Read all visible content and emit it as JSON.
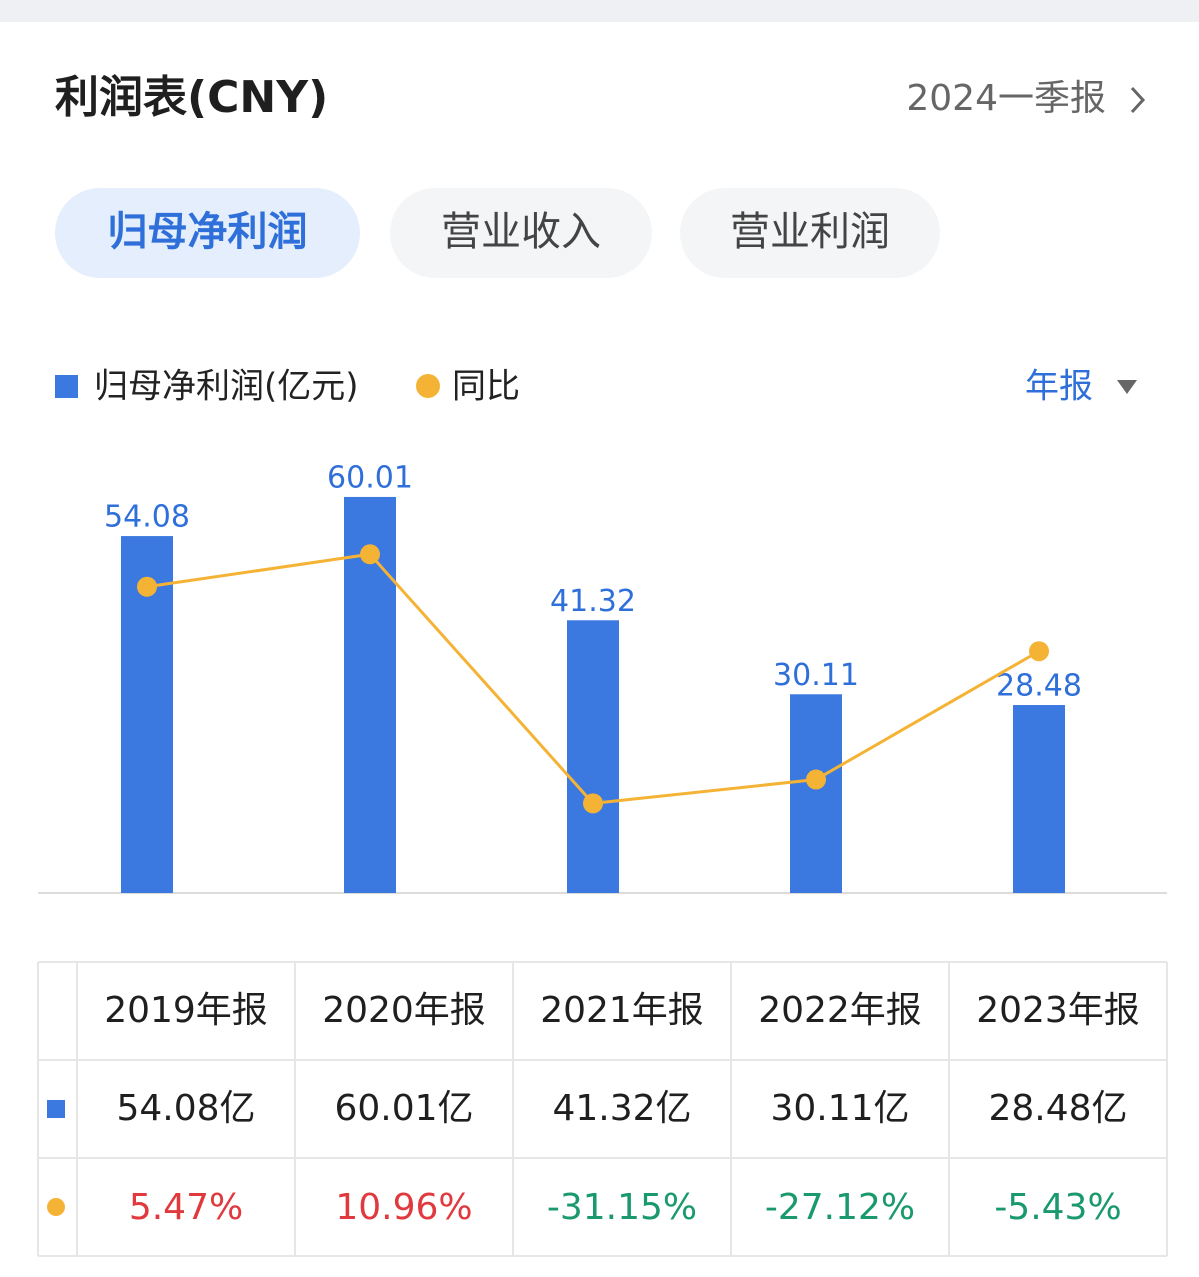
{
  "header": {
    "title": "利润表(CNY)",
    "period": "2024一季报"
  },
  "tabs": [
    "归母净利润",
    "营业收入",
    "营业利润"
  ],
  "chart_data": {
    "type": "bar-line",
    "period_selector": "年报",
    "categories": [
      "2019年报",
      "2020年报",
      "2021年报",
      "2022年报",
      "2023年报"
    ],
    "series": [
      {
        "name": "归母净利润(亿元)",
        "color": "#3b78e0",
        "values": [
          54.08,
          60.01,
          41.32,
          30.11,
          28.48
        ],
        "value_labels": [
          "54.08亿",
          "60.01亿",
          "41.32亿",
          "30.11亿",
          "28.48亿"
        ]
      },
      {
        "name": "同比",
        "color": "#f5b335",
        "axis": "y2",
        "values": [
          5.47,
          10.96,
          -31.15,
          -27.12,
          -5.43
        ],
        "value_labels": [
          "5.47%",
          "10.96%",
          "-31.15%",
          "-27.12%",
          "-5.43%"
        ]
      }
    ],
    "ylim": [
      0,
      70
    ],
    "y2lim": [
      -46.3,
      31.8
    ],
    "up_color": "#e0393e",
    "down_color": "#1a9a6c"
  }
}
